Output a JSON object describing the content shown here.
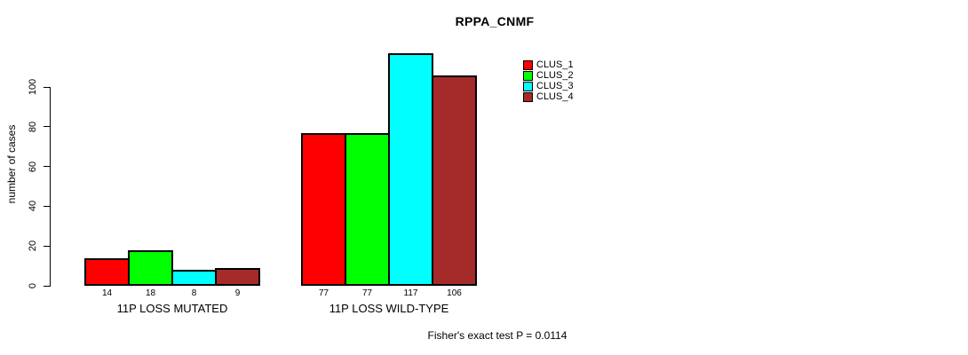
{
  "chart_data": {
    "type": "bar",
    "title": "RPPA_CNMF",
    "xlabel": "",
    "ylabel": "number of cases",
    "categories": [
      "11P LOSS MUTATED",
      "11P LOSS WILD-TYPE"
    ],
    "series": [
      {
        "name": "CLUS_1",
        "color": "#ff0000",
        "values": [
          14,
          77
        ]
      },
      {
        "name": "CLUS_2",
        "color": "#00ff00",
        "values": [
          18,
          77
        ]
      },
      {
        "name": "CLUS_3",
        "color": "#00ffff",
        "values": [
          8,
          117
        ]
      },
      {
        "name": "CLUS_4",
        "color": "#a52a2a",
        "values": [
          9,
          106
        ]
      }
    ],
    "yticks": [
      0,
      20,
      40,
      60,
      80,
      100
    ],
    "ylim": [
      0,
      117
    ],
    "grid": false,
    "legend_position": "upper-right-outside-plot",
    "bar_value_labels": true,
    "annotation": "Fisher's exact test P = 0.0114"
  }
}
